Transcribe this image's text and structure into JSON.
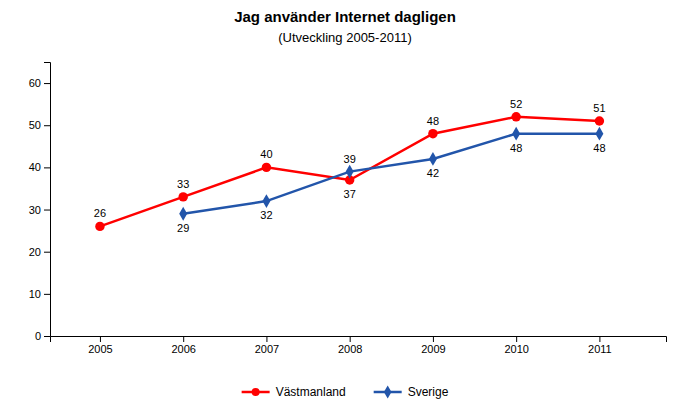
{
  "chart_data": {
    "type": "line",
    "title": "Jag använder Internet dagligen",
    "subtitle": "(Utveckling 2005-2011)",
    "x": [
      2005,
      2006,
      2007,
      2008,
      2009,
      2010,
      2011
    ],
    "series": [
      {
        "name": "Västmanland",
        "color": "#ff0000",
        "marker": "circle",
        "values": [
          26,
          33,
          40,
          37,
          48,
          52,
          51
        ]
      },
      {
        "name": "Sverige",
        "color": "#2255aa",
        "marker": "diamond",
        "values": [
          null,
          29,
          32,
          39,
          42,
          48,
          48
        ]
      }
    ],
    "xlim": [
      2004.4,
      2011.8
    ],
    "xticks": [
      2005,
      2006,
      2007,
      2008,
      2009,
      2010,
      2011
    ],
    "ylim": [
      0,
      65
    ],
    "yticks": [
      0,
      10,
      20,
      30,
      40,
      50,
      60
    ],
    "grid": false,
    "legend": "bottom",
    "data_labels": true
  }
}
